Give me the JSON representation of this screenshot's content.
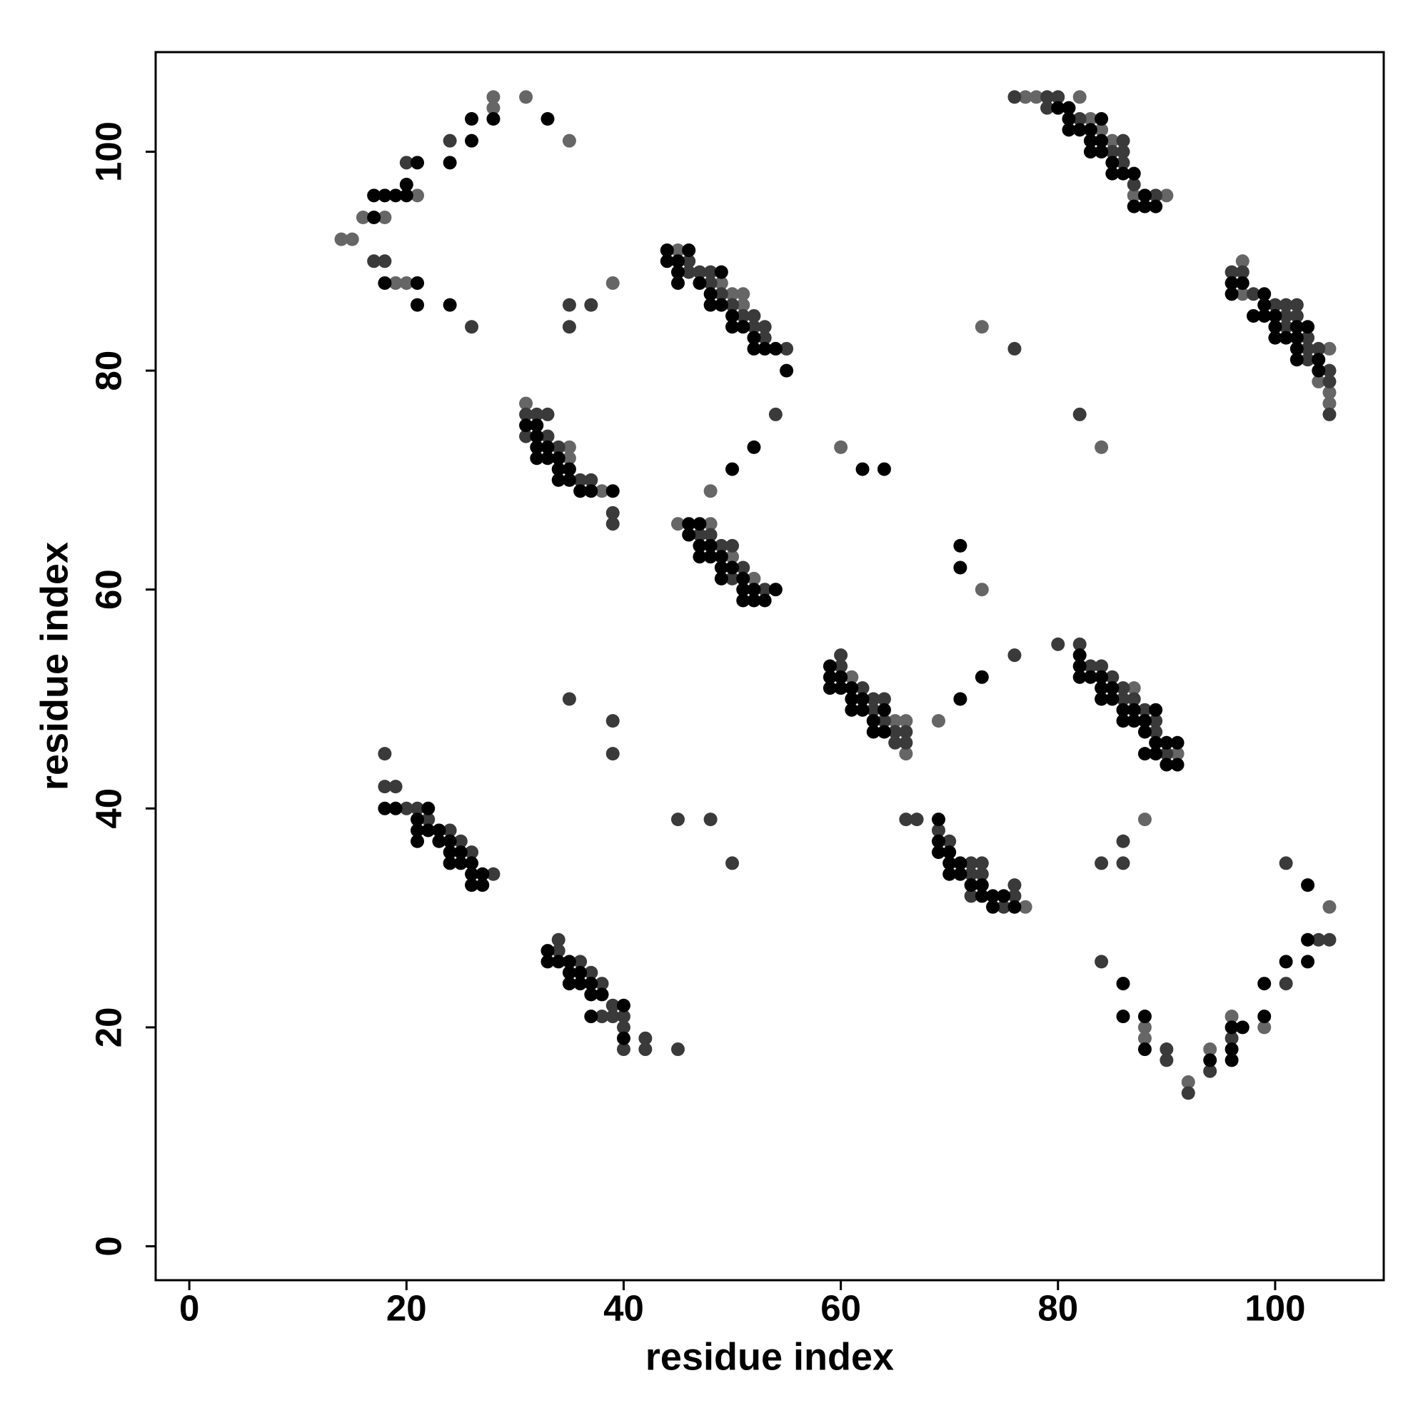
{
  "chart_data": {
    "type": "scatter",
    "xlabel": "residue index",
    "ylabel": "residue index",
    "xlim": [
      -3.1,
      110
    ],
    "ylim": [
      -3.1,
      109.1
    ],
    "xticks": [
      0,
      20,
      40,
      60,
      80,
      100
    ],
    "yticks": [
      0,
      20,
      40,
      60,
      80,
      100
    ],
    "grid": false,
    "series": [
      {
        "color": "#666666",
        "x": [
          14,
          15,
          16,
          21,
          18,
          19,
          20,
          28,
          28,
          31,
          35,
          39,
          77,
          78,
          82,
          83,
          84,
          85,
          87,
          90,
          45,
          49,
          50,
          51,
          51,
          31,
          35,
          35,
          38,
          48,
          45,
          48,
          50,
          52,
          97,
          97,
          105,
          104,
          105,
          105,
          73,
          84,
          60,
          73,
          61,
          65,
          66,
          66,
          69,
          87,
          91,
          77,
          88,
          88,
          88,
          92,
          94,
          96,
          99,
          105
        ],
        "values": [
          92,
          92,
          94,
          96,
          94,
          88,
          88,
          104,
          105,
          105,
          101,
          88,
          105,
          105,
          105,
          103,
          102,
          101,
          96,
          96,
          91,
          88,
          87,
          87,
          86,
          77,
          73,
          72,
          69,
          69,
          66,
          66,
          63,
          61,
          90,
          87,
          82,
          79,
          78,
          77,
          84,
          73,
          73,
          60,
          52,
          48,
          48,
          45,
          48,
          51,
          45,
          31,
          39,
          20,
          19,
          15,
          18,
          21,
          20,
          31
        ]
      },
      {
        "color": "#3a3a3a",
        "x": [
          17,
          18,
          20,
          26,
          24,
          35,
          35,
          37,
          76,
          79,
          80,
          79,
          82,
          86,
          85,
          86,
          86,
          87,
          89,
          46,
          46,
          47,
          48,
          48,
          49,
          50,
          51,
          52,
          52,
          53,
          53,
          55,
          31,
          32,
          33,
          31,
          33,
          34,
          36,
          37,
          39,
          39,
          54,
          47,
          48,
          49,
          50,
          51,
          50,
          53,
          96,
          97,
          98,
          100,
          101,
          102,
          101,
          102,
          101,
          103,
          103,
          104,
          103,
          105,
          105,
          105,
          76,
          82,
          60,
          60,
          62,
          63,
          64,
          63,
          64,
          65,
          66,
          65,
          66,
          76,
          80,
          82,
          83,
          84,
          85,
          86,
          86,
          87,
          88,
          89,
          89,
          90,
          18,
          18,
          19,
          20,
          21,
          22,
          24,
          25,
          26,
          28,
          35,
          39,
          39,
          45,
          48,
          50,
          34,
          34,
          36,
          37,
          38,
          39,
          38,
          39,
          40,
          40,
          42,
          40,
          42,
          45,
          66,
          67,
          69,
          70,
          72,
          73,
          72,
          73,
          76,
          72,
          76,
          75,
          86,
          84,
          86,
          84,
          90,
          90,
          92,
          94,
          96,
          101,
          101,
          104,
          105
        ],
        "values": [
          90,
          90,
          99,
          84,
          101,
          86,
          84,
          86,
          105,
          105,
          105,
          104,
          103,
          101,
          100,
          100,
          99,
          97,
          96,
          90,
          89,
          89,
          89,
          88,
          87,
          86,
          85,
          85,
          84,
          84,
          83,
          82,
          76,
          76,
          76,
          74,
          74,
          73,
          70,
          70,
          67,
          66,
          76,
          65,
          65,
          64,
          64,
          62,
          61,
          60,
          89,
          89,
          87,
          86,
          86,
          86,
          85,
          85,
          84,
          83,
          82,
          82,
          81,
          80,
          79,
          76,
          82,
          76,
          53,
          54,
          51,
          50,
          50,
          49,
          48,
          47,
          47,
          46,
          46,
          54,
          55,
          55,
          53,
          53,
          52,
          51,
          50,
          50,
          49,
          48,
          47,
          45,
          45,
          42,
          42,
          40,
          40,
          39,
          38,
          37,
          36,
          34,
          50,
          48,
          45,
          39,
          39,
          35,
          28,
          27,
          26,
          25,
          24,
          22,
          21,
          21,
          21,
          20,
          19,
          18,
          18,
          18,
          39,
          39,
          38,
          37,
          35,
          35,
          34,
          34,
          33,
          32,
          32,
          31,
          37,
          35,
          35,
          26,
          18,
          17,
          14,
          16,
          19,
          35,
          24,
          28,
          28
        ]
      },
      {
        "color": "#000000",
        "x": [
          17,
          17,
          18,
          19,
          20,
          20,
          21,
          18,
          21,
          21,
          24,
          24,
          26,
          26,
          28,
          33,
          80,
          81,
          81,
          84,
          81,
          82,
          83,
          83,
          84,
          83,
          84,
          85,
          85,
          86,
          87,
          88,
          87,
          88,
          89,
          44,
          46,
          44,
          45,
          45,
          49,
          45,
          47,
          48,
          48,
          49,
          50,
          50,
          51,
          52,
          52,
          53,
          54,
          55,
          31,
          32,
          32,
          32,
          33,
          32,
          33,
          34,
          34,
          35,
          34,
          35,
          36,
          37,
          39,
          52,
          50,
          46,
          47,
          46,
          47,
          48,
          47,
          48,
          49,
          49,
          50,
          49,
          51,
          51,
          52,
          54,
          51,
          52,
          53,
          96,
          97,
          96,
          99,
          99,
          98,
          99,
          100,
          100,
          102,
          103,
          100,
          101,
          102,
          102,
          102,
          104,
          104,
          62,
          64,
          71,
          71,
          59,
          59,
          60,
          59,
          60,
          61,
          61,
          62,
          61,
          62,
          64,
          63,
          63,
          64,
          71,
          73,
          82,
          82,
          82,
          83,
          84,
          84,
          85,
          84,
          85,
          86,
          87,
          89,
          86,
          87,
          88,
          88,
          89,
          90,
          91,
          88,
          89,
          90,
          91,
          18,
          19,
          22,
          21,
          21,
          22,
          23,
          21,
          23,
          24,
          24,
          25,
          24,
          25,
          26,
          26,
          27,
          26,
          27,
          33,
          33,
          34,
          35,
          35,
          36,
          35,
          36,
          37,
          37,
          38,
          40,
          37,
          40,
          69,
          69,
          69,
          70,
          70,
          71,
          70,
          71,
          72,
          73,
          73,
          74,
          75,
          74,
          76,
          86,
          86,
          88,
          88,
          94,
          96,
          97,
          96,
          96,
          99,
          99,
          101,
          103,
          103,
          103
        ],
        "values": [
          94,
          96,
          96,
          96,
          96,
          97,
          99,
          88,
          88,
          86,
          86,
          99,
          101,
          103,
          103,
          103,
          104,
          104,
          103,
          103,
          102,
          102,
          102,
          101,
          101,
          100,
          100,
          99,
          98,
          98,
          98,
          96,
          95,
          95,
          95,
          91,
          91,
          90,
          90,
          89,
          89,
          88,
          88,
          87,
          86,
          86,
          85,
          84,
          84,
          83,
          82,
          82,
          82,
          80,
          75,
          75,
          74,
          73,
          73,
          72,
          72,
          72,
          71,
          71,
          70,
          70,
          69,
          69,
          69,
          73,
          71,
          66,
          66,
          65,
          64,
          64,
          63,
          63,
          63,
          62,
          62,
          61,
          61,
          60,
          60,
          60,
          59,
          59,
          59,
          88,
          88,
          87,
          87,
          86,
          85,
          85,
          85,
          84,
          84,
          84,
          83,
          83,
          83,
          82,
          81,
          81,
          80,
          71,
          71,
          64,
          62,
          53,
          52,
          52,
          51,
          51,
          51,
          50,
          50,
          49,
          49,
          49,
          48,
          47,
          47,
          50,
          52,
          54,
          53,
          52,
          52,
          52,
          51,
          51,
          50,
          50,
          49,
          49,
          49,
          48,
          48,
          48,
          47,
          46,
          46,
          46,
          45,
          45,
          44,
          44,
          40,
          40,
          40,
          39,
          38,
          38,
          38,
          37,
          37,
          37,
          36,
          36,
          35,
          35,
          35,
          34,
          34,
          33,
          33,
          27,
          26,
          26,
          26,
          25,
          25,
          24,
          24,
          24,
          23,
          23,
          22,
          21,
          19,
          39,
          37,
          36,
          36,
          35,
          35,
          34,
          34,
          33,
          33,
          32,
          32,
          32,
          31,
          31,
          24,
          21,
          21,
          18,
          17,
          20,
          20,
          18,
          17,
          24,
          21,
          26,
          33,
          28,
          26
        ]
      }
    ]
  }
}
